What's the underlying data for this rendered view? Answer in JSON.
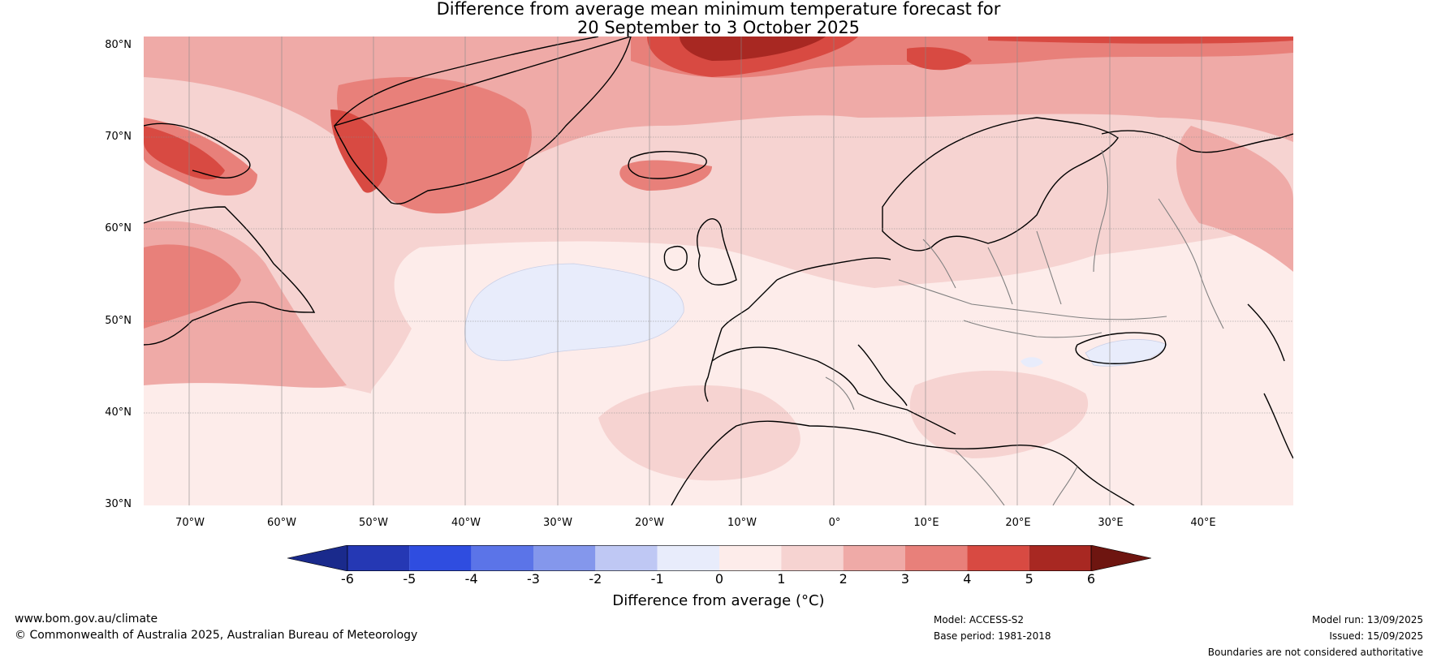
{
  "title": {
    "line1": "Difference from average mean minimum temperature forecast for",
    "line2": "20 September to 3 October 2025"
  },
  "map": {
    "lat_labels": [
      "80°N",
      "70°N",
      "60°N",
      "50°N",
      "40°N",
      "30°N"
    ],
    "lon_labels": [
      "70°W",
      "60°W",
      "50°W",
      "40°W",
      "30°W",
      "20°W",
      "10°W",
      "0°",
      "10°E",
      "20°E",
      "30°E",
      "40°E"
    ],
    "grid": true,
    "region": "North Atlantic and Europe"
  },
  "legend": {
    "ticks": [
      "-6",
      "-5",
      "-4",
      "-3",
      "-2",
      "-1",
      "0",
      "1",
      "2",
      "3",
      "4",
      "5",
      "6"
    ],
    "colors": [
      "#1a2a8c",
      "#2538b4",
      "#2f4de0",
      "#5b74e8",
      "#8497ec",
      "#bfc8f4",
      "#e8ecfb",
      "#fdecea",
      "#f6d3d1",
      "#efaaa7",
      "#e8807a",
      "#d84a42",
      "#a82822",
      "#6e1510"
    ],
    "label": "Difference from average (°C)"
  },
  "footer": {
    "website": "www.bom.gov.au/climate",
    "copyright": "© Commonwealth of Australia 2025, Australian Bureau of Meteorology",
    "model": "Model: ACCESS-S2",
    "base_period": "Base period: 1981-2018",
    "model_run": "Model run: 13/09/2025",
    "issued": "Issued: 15/09/2025",
    "disclaimer": "Boundaries are not considered authoritative"
  }
}
